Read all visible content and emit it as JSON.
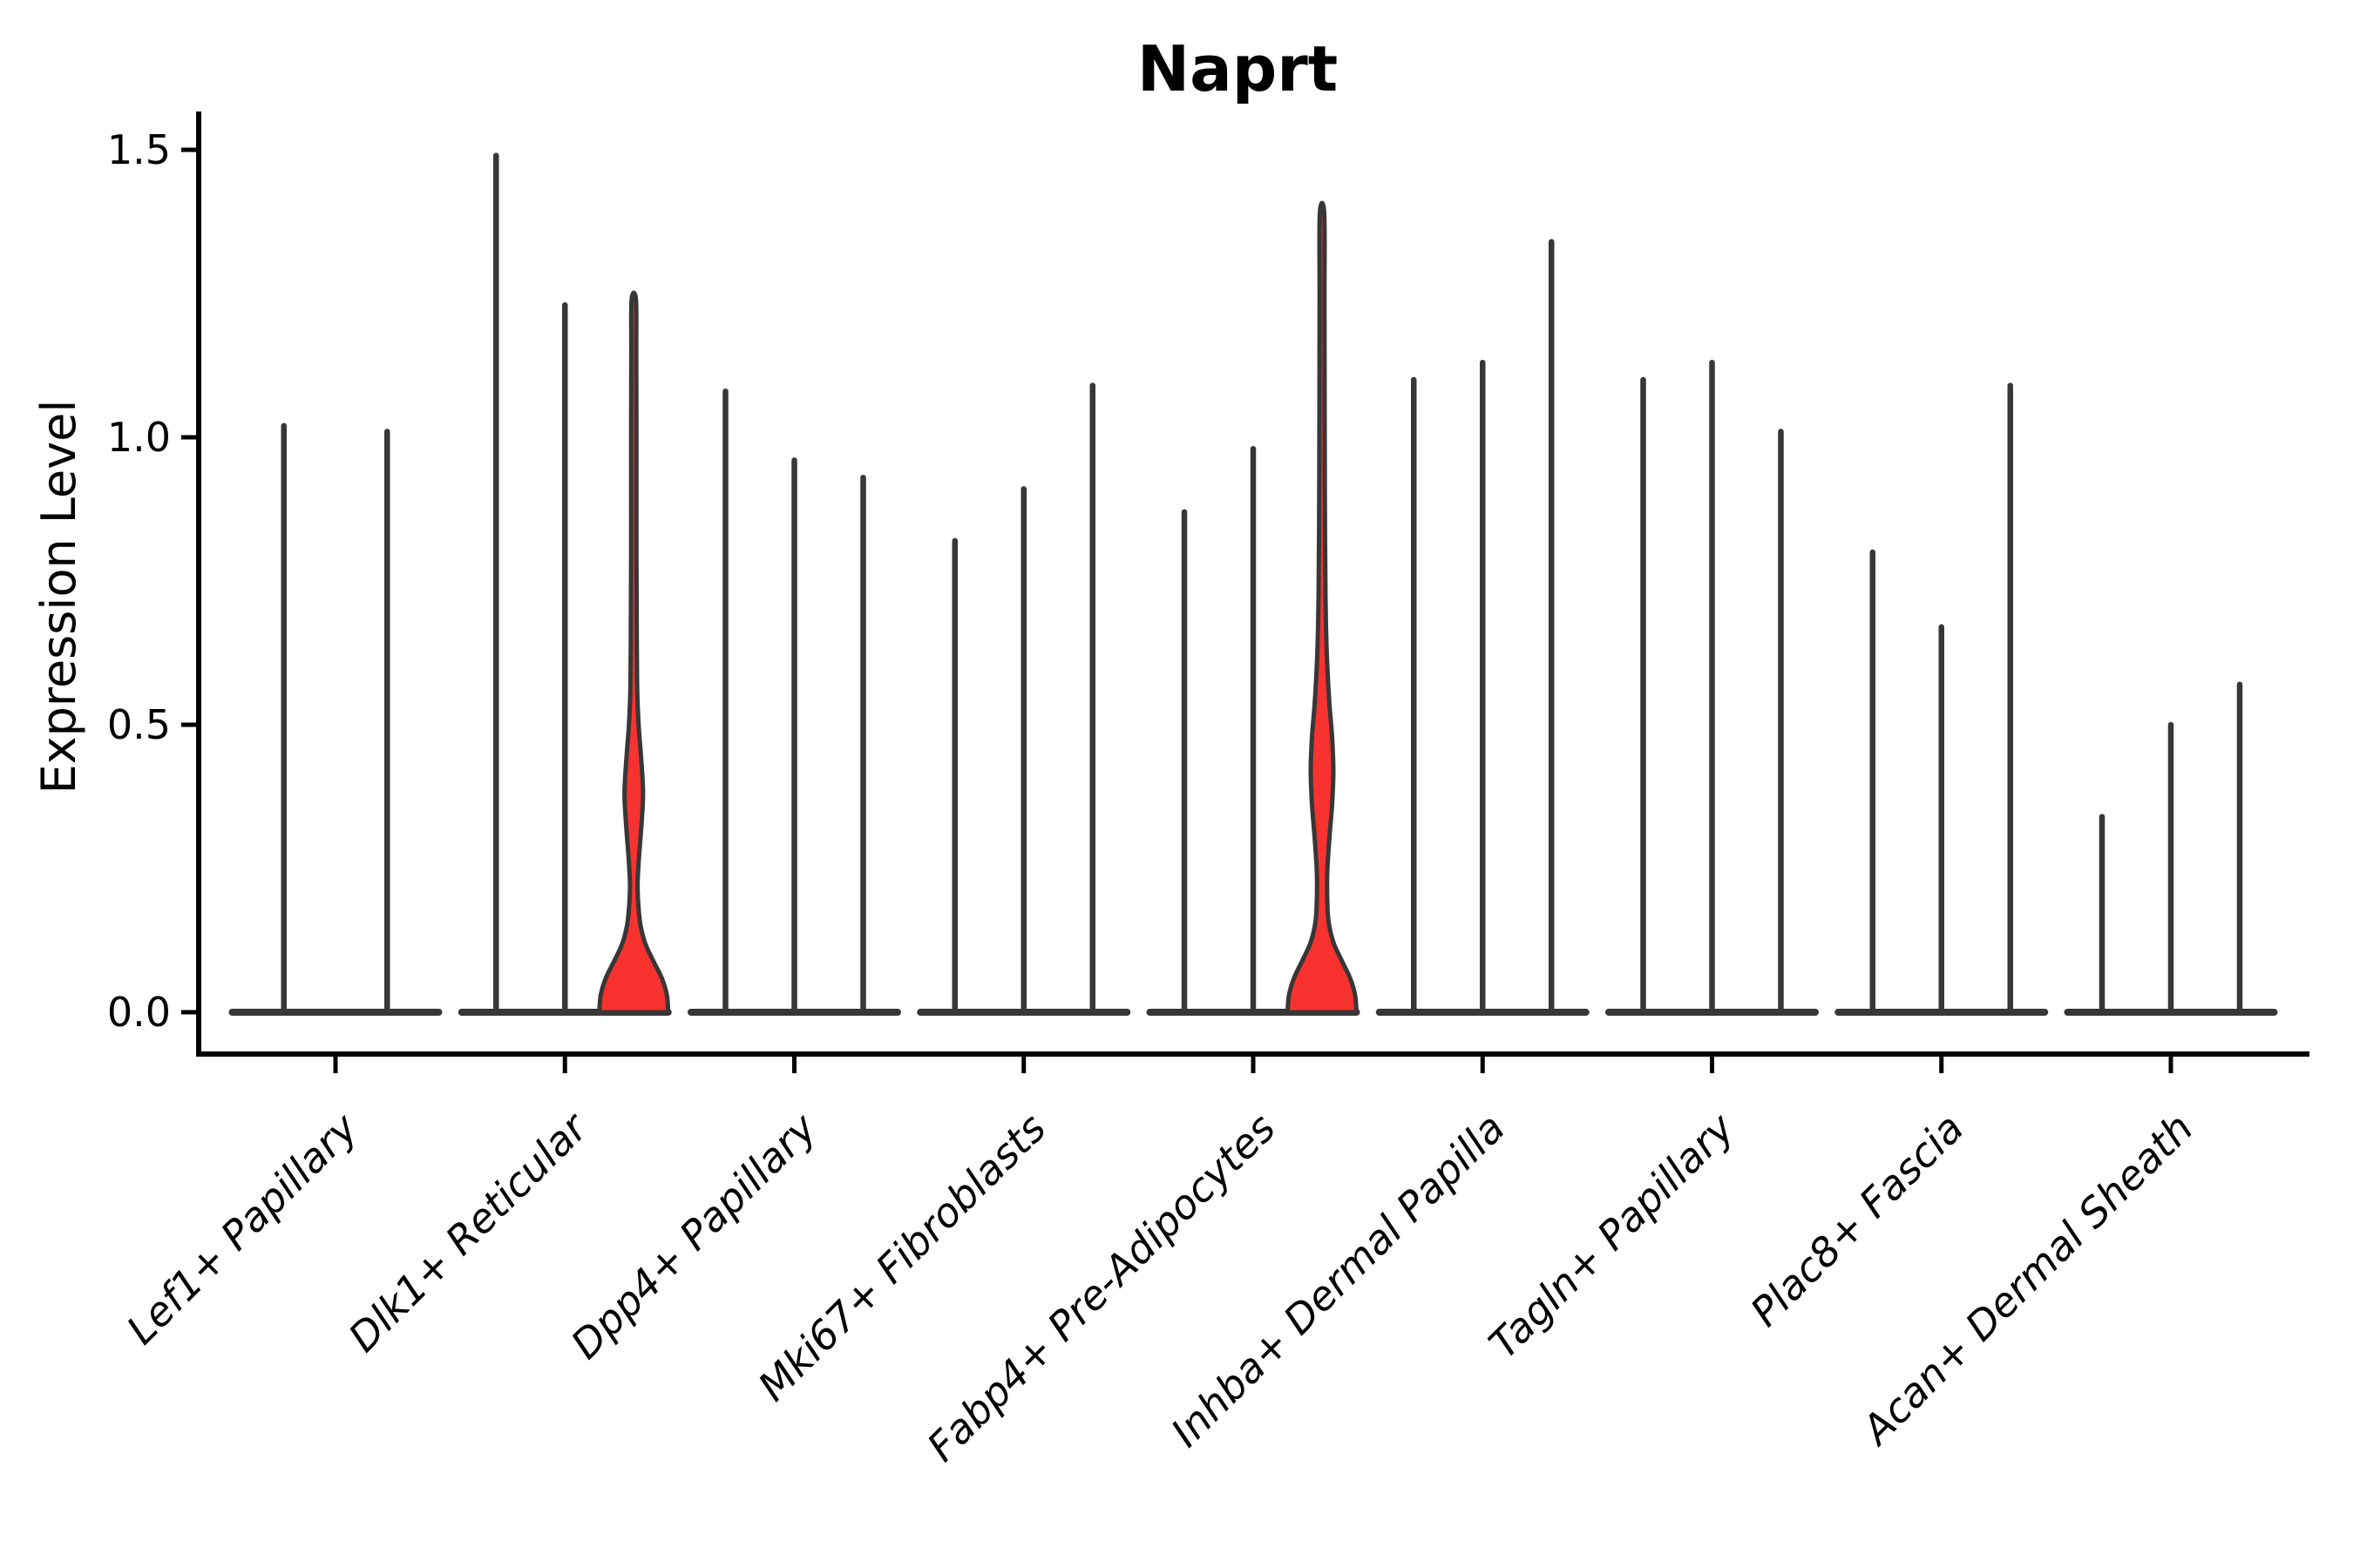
{
  "chart_data": {
    "type": "violin",
    "title": "Naprt",
    "ylabel": "Expression Level",
    "xlabel": "",
    "y_axis": {
      "ticks": [
        "0.0",
        "0.5",
        "1.0",
        "1.5"
      ],
      "range": [
        -0.07,
        1.56
      ]
    },
    "legend": "none",
    "grid": false,
    "style": {
      "x_label_rotation": 45,
      "x_label_italic": true
    },
    "colors": {
      "violin_outline": "#373737",
      "highlight_fill": "#F8322F",
      "axis": "#000000",
      "text": "#000000",
      "background": "#FFFFFF"
    },
    "categories": [
      "Lef1+ Papillary",
      "Dlk1+ Reticular",
      "Dpp4+ Papillary",
      "Mki67+ Fibroblasts",
      "Fabp4+ Pre-Adipocytes",
      "Inhba+ Dermal Papilla",
      "Tagln+ Papillary",
      "Plac8+ Fascia",
      "Acan+ Dermal Sheath"
    ],
    "groups": [
      {
        "category": "Lef1+ Papillary",
        "violins": [
          {
            "max": 1.02
          },
          {
            "max": 1.01
          }
        ]
      },
      {
        "category": "Dlk1+ Reticular",
        "violins": [
          {
            "max": 1.49
          },
          {
            "max": 1.23
          },
          {
            "max": 1.24,
            "filled": true,
            "profile": "A"
          }
        ]
      },
      {
        "category": "Dpp4+ Papillary",
        "violins": [
          {
            "max": 1.08
          },
          {
            "max": 0.96
          },
          {
            "max": 0.93
          }
        ]
      },
      {
        "category": "Mki67+ Fibroblasts",
        "violins": [
          {
            "max": 0.82
          },
          {
            "max": 0.91
          },
          {
            "max": 1.09
          }
        ]
      },
      {
        "category": "Fabp4+ Pre-Adipocytes",
        "violins": [
          {
            "max": 0.87
          },
          {
            "max": 0.98
          },
          {
            "max": 1.39,
            "filled": true,
            "profile": "B"
          }
        ]
      },
      {
        "category": "Inhba+ Dermal Papilla",
        "violins": [
          {
            "max": 1.1
          },
          {
            "max": 1.13
          },
          {
            "max": 1.34
          }
        ]
      },
      {
        "category": "Tagln+ Papillary",
        "violins": [
          {
            "max": 1.1
          },
          {
            "max": 1.13
          },
          {
            "max": 1.01
          }
        ]
      },
      {
        "category": "Plac8+ Fascia",
        "violins": [
          {
            "max": 0.8
          },
          {
            "max": 0.67
          },
          {
            "max": 1.09
          }
        ]
      },
      {
        "category": "Acan+ Dermal Sheath",
        "violins": [
          {
            "max": 0.34
          },
          {
            "max": 0.5
          },
          {
            "max": 0.57
          }
        ]
      }
    ],
    "profiles": {
      "A": [
        [
          0,
          1.0
        ],
        [
          0.03,
          0.96
        ],
        [
          0.06,
          0.81
        ],
        [
          0.09,
          0.56
        ],
        [
          0.12,
          0.33
        ],
        [
          0.15,
          0.2
        ],
        [
          0.18,
          0.14
        ],
        [
          0.22,
          0.11
        ],
        [
          0.26,
          0.14
        ],
        [
          0.3,
          0.19
        ],
        [
          0.34,
          0.24
        ],
        [
          0.38,
          0.27
        ],
        [
          0.42,
          0.24
        ],
        [
          0.46,
          0.19
        ],
        [
          0.5,
          0.14
        ],
        [
          0.56,
          0.1
        ],
        [
          0.64,
          0.088
        ],
        [
          0.8,
          0.076
        ],
        [
          1.0,
          0.076
        ],
        [
          1.15,
          0.072
        ],
        [
          1.24,
          0.063
        ]
      ],
      "B": [
        [
          0,
          1.0
        ],
        [
          0.03,
          0.96
        ],
        [
          0.06,
          0.81
        ],
        [
          0.09,
          0.57
        ],
        [
          0.12,
          0.34
        ],
        [
          0.15,
          0.21
        ],
        [
          0.18,
          0.16
        ],
        [
          0.24,
          0.15
        ],
        [
          0.3,
          0.21
        ],
        [
          0.36,
          0.29
        ],
        [
          0.42,
          0.33
        ],
        [
          0.48,
          0.29
        ],
        [
          0.54,
          0.21
        ],
        [
          0.62,
          0.14
        ],
        [
          0.72,
          0.1
        ],
        [
          0.88,
          0.083
        ],
        [
          1.05,
          0.076
        ],
        [
          1.25,
          0.072
        ],
        [
          1.39,
          0.063
        ]
      ]
    }
  }
}
